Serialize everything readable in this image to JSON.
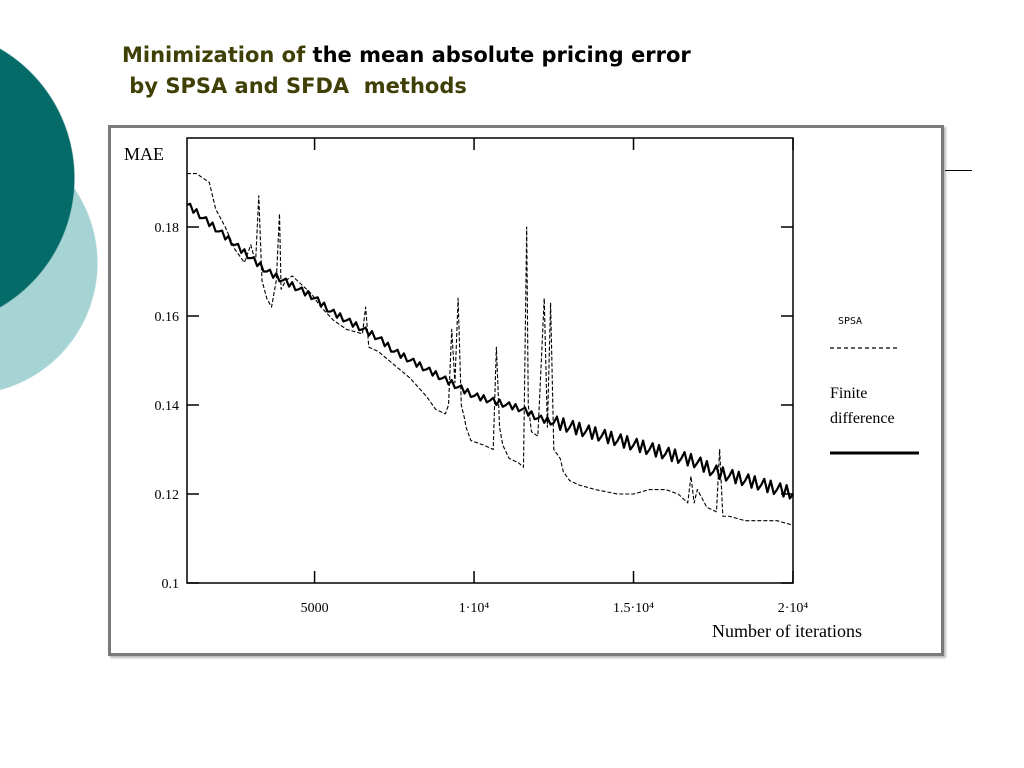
{
  "slide": {
    "title_part1": "Minimization of",
    "title_part2": " the mean absolute pricing error",
    "title_line2": " by SPSA and SFDA  methods",
    "accent_color": "#3f3f06",
    "circle_dark": "#056b68",
    "circle_light": "#a6d3d4"
  },
  "chart_data": {
    "type": "line",
    "title": "",
    "xlabel": "Number of iterations",
    "ylabel": "MAE",
    "xlim": [
      1000,
      20000
    ],
    "ylim": [
      0.1,
      0.2
    ],
    "x_ticks": [
      {
        "value": 5000,
        "label": "5000"
      },
      {
        "value": 10000,
        "label": "1·10⁴"
      },
      {
        "value": 15000,
        "label": "1.5·10⁴"
      },
      {
        "value": 20000,
        "label": "2·10⁴"
      }
    ],
    "y_ticks": [
      {
        "value": 0.1,
        "label": "0.1"
      },
      {
        "value": 0.12,
        "label": "0.12"
      },
      {
        "value": 0.14,
        "label": "0.14"
      },
      {
        "value": 0.16,
        "label": "0.16"
      },
      {
        "value": 0.18,
        "label": "0.18"
      }
    ],
    "legend": {
      "placement": "right-outside"
    },
    "series": [
      {
        "name": "SPSA",
        "style": "dashed",
        "x": [
          1000,
          1300,
          1700,
          1900,
          2200,
          2500,
          2800,
          3000,
          3150,
          3250,
          3350,
          3500,
          3650,
          3800,
          3900,
          3950,
          4100,
          4300,
          4600,
          4900,
          5200,
          5600,
          6000,
          6500,
          6600,
          6700,
          7000,
          7500,
          8000,
          8500,
          8800,
          9100,
          9200,
          9300,
          9400,
          9500,
          9600,
          9700,
          9750,
          9900,
          10300,
          10600,
          10700,
          10800,
          10900,
          11100,
          11400,
          11550,
          11650,
          11700,
          11800,
          12000,
          12200,
          12300,
          12400,
          12500,
          12700,
          12800,
          13000,
          13300,
          13800,
          14500,
          15000,
          15500,
          16000,
          16400,
          16700,
          16800,
          16900,
          17000,
          17300,
          17600,
          17700,
          17800,
          18000,
          18500,
          19000,
          19500,
          20000
        ],
        "y": [
          0.192,
          0.192,
          0.19,
          0.184,
          0.18,
          0.175,
          0.172,
          0.176,
          0.172,
          0.187,
          0.168,
          0.164,
          0.162,
          0.168,
          0.183,
          0.166,
          0.168,
          0.169,
          0.167,
          0.165,
          0.162,
          0.159,
          0.157,
          0.156,
          0.162,
          0.153,
          0.152,
          0.149,
          0.146,
          0.142,
          0.139,
          0.138,
          0.14,
          0.157,
          0.145,
          0.164,
          0.14,
          0.137,
          0.135,
          0.132,
          0.131,
          0.13,
          0.153,
          0.135,
          0.131,
          0.128,
          0.127,
          0.126,
          0.18,
          0.14,
          0.134,
          0.133,
          0.164,
          0.135,
          0.163,
          0.13,
          0.128,
          0.125,
          0.123,
          0.122,
          0.121,
          0.12,
          0.12,
          0.121,
          0.121,
          0.12,
          0.118,
          0.124,
          0.118,
          0.121,
          0.117,
          0.116,
          0.13,
          0.115,
          0.115,
          0.114,
          0.114,
          0.114,
          0.113
        ]
      },
      {
        "name": "Finite difference",
        "style": "solid",
        "x": [
          1000,
          1500,
          2000,
          2500,
          3000,
          3500,
          4000,
          4500,
          5000,
          5500,
          6000,
          6500,
          7000,
          7500,
          8000,
          8500,
          9000,
          9500,
          10000,
          10500,
          11000,
          11500,
          12000,
          12500,
          13000,
          13500,
          14000,
          14500,
          15000,
          15500,
          16000,
          16500,
          17000,
          17500,
          18000,
          18500,
          19000,
          19500,
          20000
        ],
        "y": [
          0.185,
          0.182,
          0.179,
          0.176,
          0.173,
          0.17,
          0.168,
          0.166,
          0.164,
          0.161,
          0.159,
          0.157,
          0.155,
          0.152,
          0.15,
          0.148,
          0.146,
          0.144,
          0.142,
          0.141,
          0.14,
          0.139,
          0.137,
          0.136,
          0.135,
          0.134,
          0.133,
          0.132,
          0.131,
          0.13,
          0.129,
          0.128,
          0.127,
          0.125,
          0.124,
          0.123,
          0.122,
          0.121,
          0.12
        ]
      }
    ]
  }
}
